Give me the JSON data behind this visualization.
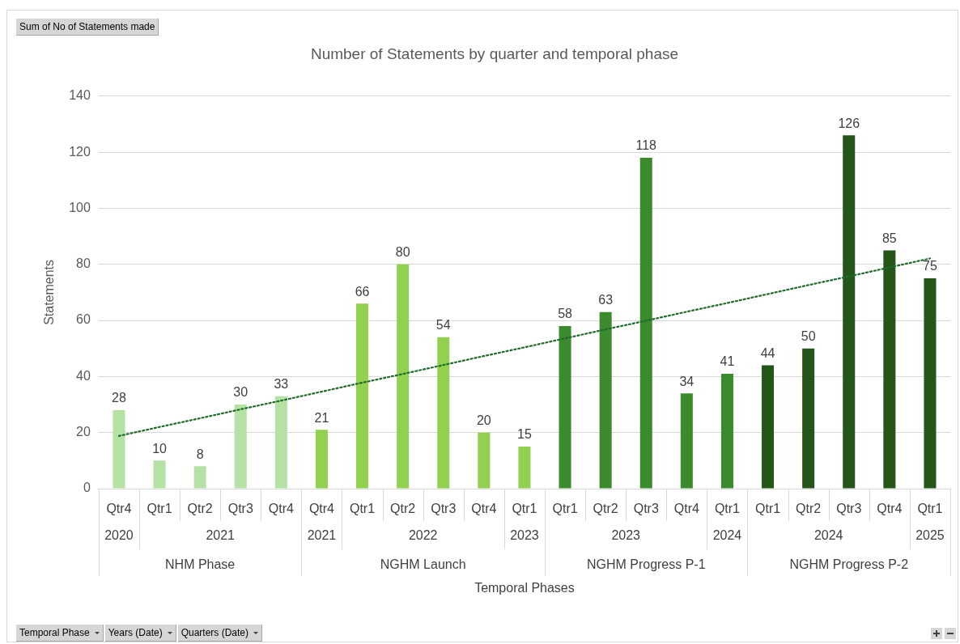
{
  "chart_data": {
    "type": "bar",
    "title": "Number of Statements by quarter and temporal phase",
    "ylabel": "Statements",
    "categories": [
      "Qtr4",
      "Qtr1",
      "Qtr2",
      "Qtr3",
      "Qtr4",
      "Qtr4",
      "Qtr1",
      "Qtr2",
      "Qtr3",
      "Qtr4",
      "Qtr1",
      "Qtr1",
      "Qtr2",
      "Qtr3",
      "Qtr4",
      "Qtr1",
      "Qtr1",
      "Qtr2",
      "Qtr3",
      "Qtr4",
      "Qtr1"
    ],
    "series": [
      {
        "values": [
          28,
          10,
          8,
          30,
          33,
          21,
          66,
          80,
          54,
          20,
          15,
          58,
          63,
          118,
          34,
          41,
          44,
          50,
          126,
          85,
          75
        ],
        "colors": [
          "#b4e2a4",
          "#b4e2a4",
          "#b4e2a4",
          "#b4e2a4",
          "#b4e2a4",
          "#92d050",
          "#92d050",
          "#92d050",
          "#92d050",
          "#92d050",
          "#92d050",
          "#3b8a2d",
          "#3b8a2d",
          "#3b8a2d",
          "#3b8a2d",
          "#3b8a2d",
          "#24561a",
          "#24561a",
          "#24561a",
          "#24561a",
          "#24561a"
        ],
        "value_labels": [
          "28",
          "10",
          "8",
          "30",
          "33",
          "21",
          "66",
          "80",
          "54",
          "20",
          "15",
          "58",
          "63",
          "118",
          "34",
          "41",
          "44",
          "50",
          "126",
          "85",
          "75"
        ]
      },
      {
        "type": "line",
        "color": "#1f6b2a",
        "line_style": "dotted",
        "marker": "none",
        "values": [
          18.8,
          22.0,
          25.1,
          28.3,
          31.4,
          34.6,
          37.8,
          40.9,
          44.1,
          47.3,
          50.4,
          53.6,
          56.8,
          59.9,
          63.1,
          66.2,
          69.4,
          72.6,
          75.7,
          78.9,
          82.1
        ]
      }
    ],
    "annotations": [
      "Sum of No of Statements made",
      "Temporal Phases",
      "2020",
      "2021",
      "2021",
      "2022",
      "2023",
      "2023",
      "2024",
      "2024",
      "2025",
      "NHM Phase",
      "NGHM Launch",
      "NGHM Progress P-1",
      "NGHM Progress P-2",
      "Temporal Phase",
      "Years (Date)",
      "Quarters (Date)"
    ],
    "ylim": [
      0,
      140
    ],
    "yticks": [
      0,
      20,
      40,
      60,
      80,
      100,
      120,
      140
    ],
    "grid": "y",
    "legend": false
  }
}
